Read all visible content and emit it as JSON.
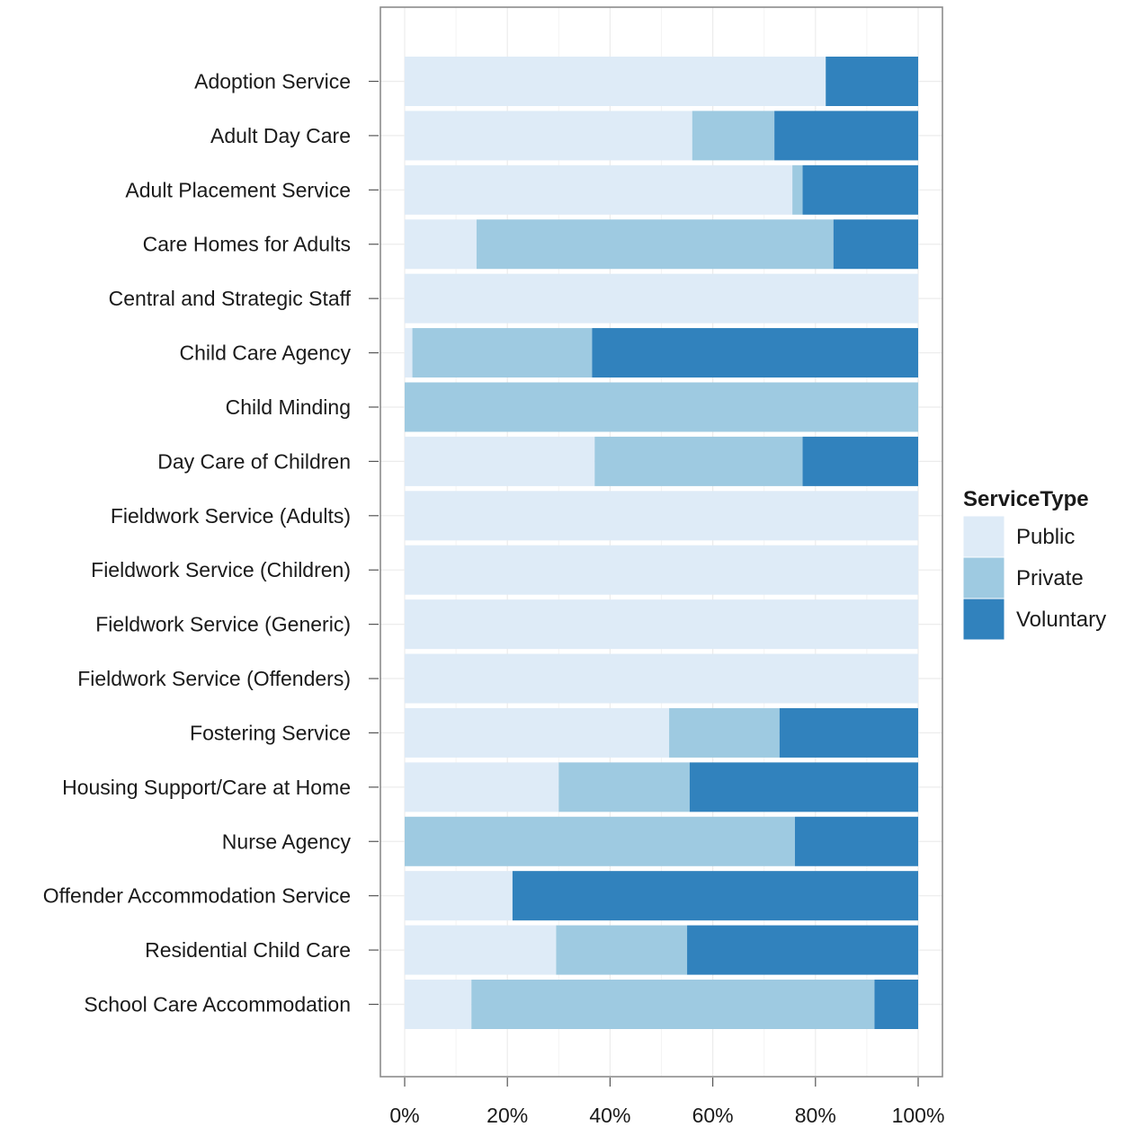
{
  "chart_data": {
    "type": "bar",
    "orientation": "horizontal",
    "stacked": "percent",
    "categories": [
      "Adoption Service",
      "Adult Day Care",
      "Adult Placement Service",
      "Care Homes for Adults",
      "Central and Strategic Staff",
      "Child Care Agency",
      "Child Minding",
      "Day Care of Children",
      "Fieldwork Service (Adults)",
      "Fieldwork Service (Children)",
      "Fieldwork Service (Generic)",
      "Fieldwork Service (Offenders)",
      "Fostering Service",
      "Housing Support/Care at Home",
      "Nurse Agency",
      "Offender Accommodation Service",
      "Residential Child Care",
      "School Care Accommodation"
    ],
    "series": [
      {
        "name": "Public",
        "color": "#deebf7",
        "values": [
          0.82,
          0.56,
          0.755,
          0.14,
          1.0,
          0.015,
          0.0,
          0.37,
          1.0,
          1.0,
          1.0,
          1.0,
          0.515,
          0.3,
          0.0,
          0.21,
          0.295,
          0.13
        ]
      },
      {
        "name": "Private",
        "color": "#9ecae1",
        "values": [
          0.0,
          0.16,
          0.02,
          0.695,
          0.0,
          0.35,
          1.0,
          0.405,
          0.0,
          0.0,
          0.0,
          0.0,
          0.215,
          0.255,
          0.76,
          0.0,
          0.255,
          0.785
        ]
      },
      {
        "name": "Voluntary",
        "color": "#3182bd",
        "values": [
          0.18,
          0.28,
          0.225,
          0.165,
          0.0,
          0.635,
          0.0,
          0.225,
          0.0,
          0.0,
          0.0,
          0.0,
          0.27,
          0.445,
          0.24,
          0.79,
          0.45,
          0.085
        ]
      }
    ],
    "x_ticks": [
      "0%",
      "20%",
      "40%",
      "60%",
      "80%",
      "100%"
    ],
    "xlim": [
      0,
      1
    ],
    "legend_title": "ServiceType",
    "legend_position": "right",
    "grid": true
  }
}
